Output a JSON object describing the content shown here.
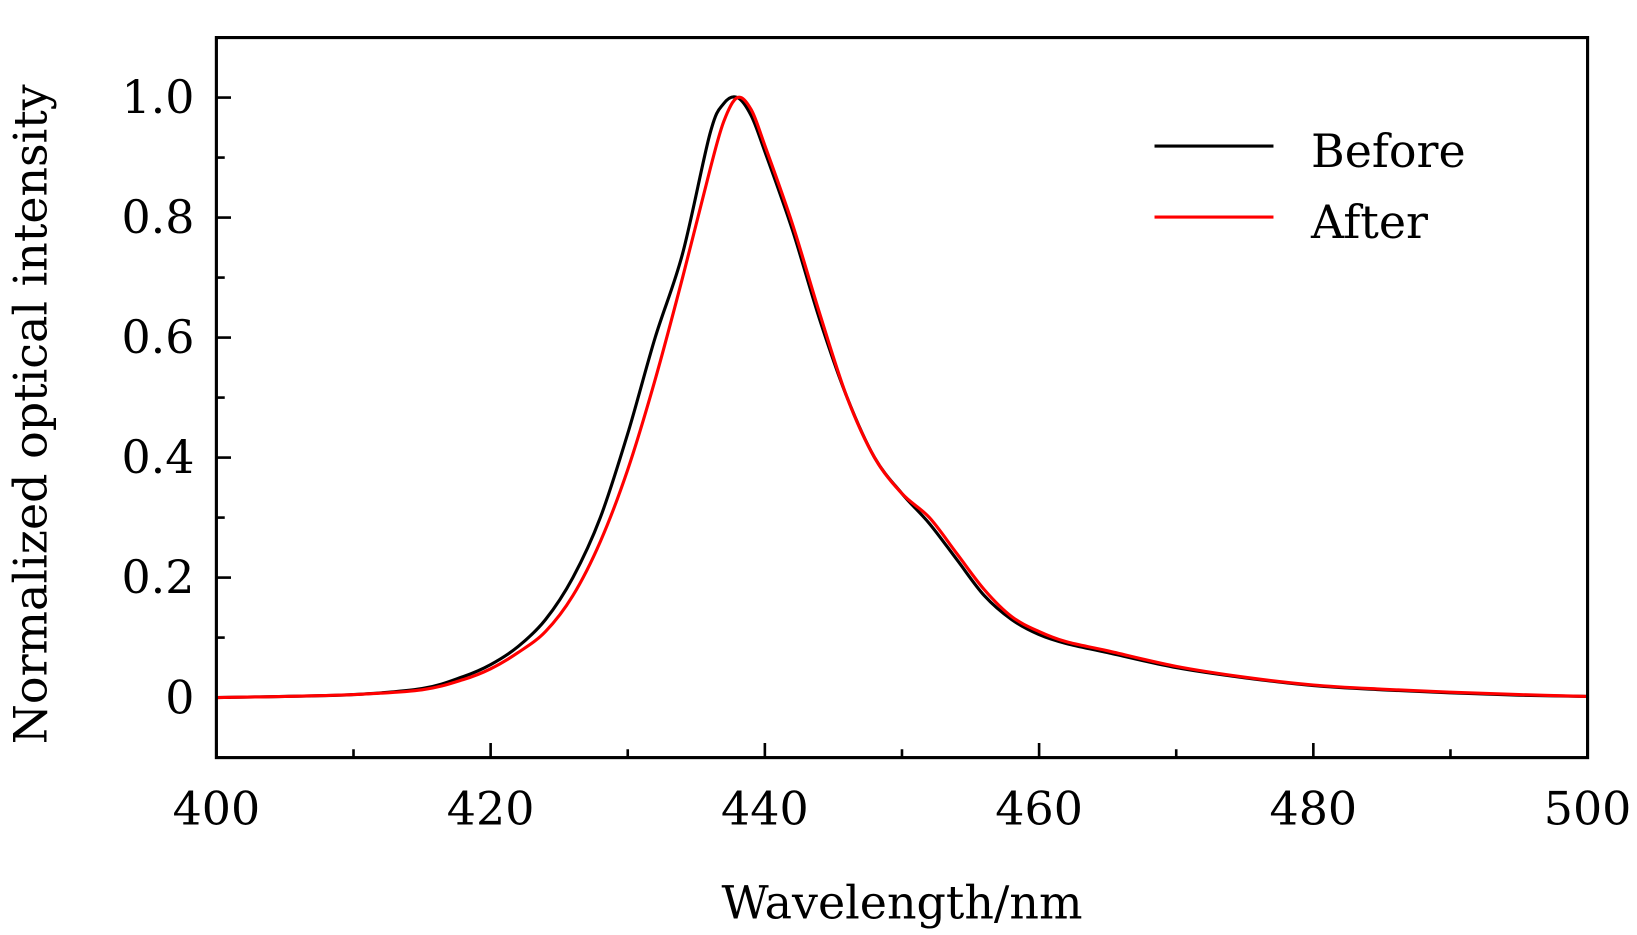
{
  "chart_data": {
    "type": "line",
    "title": "",
    "xlabel": "Wavelength/nm",
    "ylabel": "Normalized optical intensity",
    "xlim": [
      400,
      500
    ],
    "ylim": [
      -0.1,
      1.1
    ],
    "xticks": [
      400,
      420,
      440,
      460,
      480,
      500
    ],
    "xtick_labels": [
      "400",
      "420",
      "440",
      "460",
      "480",
      "500"
    ],
    "yticks": [
      0,
      0.2,
      0.4,
      0.6,
      0.8,
      1.0
    ],
    "ytick_labels": [
      "0",
      "0.2",
      "0.4",
      "0.6",
      "0.8",
      "1.0"
    ],
    "grid": false,
    "legend_position": "top-right",
    "series": [
      {
        "name": "Before",
        "color": "#000000",
        "x": [
          400,
          405,
          410,
          415,
          418,
          420,
          422,
          424,
          426,
          428,
          430,
          432,
          434,
          436,
          437,
          438,
          439,
          440,
          442,
          444,
          446,
          448,
          450,
          452,
          454,
          456,
          458,
          460,
          462,
          465,
          470,
          475,
          480,
          485,
          490,
          495,
          500
        ],
        "y": [
          0,
          0.002,
          0.005,
          0.015,
          0.035,
          0.055,
          0.085,
          0.13,
          0.2,
          0.3,
          0.44,
          0.6,
          0.74,
          0.94,
          0.99,
          1.0,
          0.97,
          0.91,
          0.78,
          0.63,
          0.5,
          0.4,
          0.34,
          0.29,
          0.23,
          0.17,
          0.13,
          0.105,
          0.09,
          0.075,
          0.05,
          0.033,
          0.02,
          0.013,
          0.008,
          0.004,
          0.002
        ]
      },
      {
        "name": "After",
        "color": "#ff0000",
        "x": [
          400,
          405,
          410,
          415,
          418,
          420,
          422,
          424,
          426,
          428,
          430,
          432,
          434,
          436,
          437,
          438,
          439,
          440,
          442,
          444,
          446,
          448,
          450,
          452,
          454,
          456,
          458,
          460,
          462,
          465,
          470,
          475,
          480,
          485,
          490,
          495,
          500
        ],
        "y": [
          0,
          0.002,
          0.005,
          0.013,
          0.03,
          0.048,
          0.075,
          0.11,
          0.17,
          0.26,
          0.38,
          0.53,
          0.7,
          0.88,
          0.96,
          1.0,
          0.98,
          0.92,
          0.79,
          0.64,
          0.5,
          0.4,
          0.34,
          0.3,
          0.24,
          0.18,
          0.135,
          0.11,
          0.093,
          0.078,
          0.052,
          0.034,
          0.021,
          0.014,
          0.009,
          0.005,
          0.002
        ]
      }
    ]
  }
}
